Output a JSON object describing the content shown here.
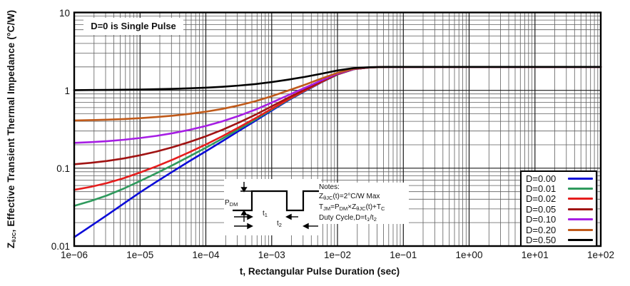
{
  "figure": {
    "annotation": "D=0 is Single Pulse",
    "xlabel": "t, Rectangular Pulse Duration (sec)",
    "ylabel_rich": "Z~θJC~, Effective Transient Thermal Impedance (°C/W)",
    "x_ticks": [
      "1e−06",
      "1e−05",
      "1e−04",
      "1e−03",
      "1e−02",
      "1e−01",
      "1e+00",
      "1e+01",
      "1e+02"
    ],
    "y_ticks": [
      "10",
      "1",
      "0.1",
      "0.01"
    ]
  },
  "notes": {
    "heading": "Notes:",
    "lines_rich": [
      "Z~θJC~(t)=2°C/W Max",
      "T~JM~=P~DM~×Z~θJC~(t)+T~C~",
      "Duty Cycle,D=t~1~/t~2~"
    ]
  },
  "pulse_diagram": {
    "pdm_rich": "P~DM~",
    "t1_rich": "t~1~",
    "t2_rich": "t~2~"
  },
  "chart_data": {
    "type": "line",
    "log_x": true,
    "log_y": true,
    "xlim": [
      1e-06,
      100
    ],
    "ylim": [
      0.01,
      10
    ],
    "grid": "log major+minor, both axes",
    "legend_position": "bottom-right inside plot",
    "title": "D=0 is Single Pulse",
    "xlabel": "t, Rectangular Pulse Duration (sec)",
    "ylabel": "ZθJC, Effective Transient Thermal Impedance (°C/W)",
    "r_thjc_max_C_per_W": 2.0,
    "model": "Z(D,t) = D·R + (1−D)·Zsp(t), R = 2 °C/W; all curves flatten at 2 °C/W for t ≳ 0.02 s",
    "single_pulse": {
      "log10_t": [
        -6,
        -5.75,
        -5.5,
        -5.25,
        -5,
        -4.75,
        -4.5,
        -4.25,
        -4,
        -3.75,
        -3.5,
        -3.25,
        -3,
        -2.75,
        -2.5,
        -2.25,
        -2,
        -1.75,
        -1.5,
        -1.25,
        -1,
        0,
        1,
        2
      ],
      "z": [
        0.013,
        0.018,
        0.025,
        0.035,
        0.049,
        0.067,
        0.091,
        0.123,
        0.165,
        0.222,
        0.3,
        0.405,
        0.55,
        0.74,
        0.97,
        1.26,
        1.6,
        1.87,
        1.97,
        2.0,
        2.0,
        2.0,
        2.0,
        2.0
      ]
    },
    "series": [
      {
        "label": "D=0.00",
        "duty": 0.0,
        "color": "#0b0bd8"
      },
      {
        "label": "D=0.01",
        "duty": 0.01,
        "color": "#2f9a5d"
      },
      {
        "label": "D=0.02",
        "duty": 0.02,
        "color": "#e51d1d"
      },
      {
        "label": "D=0.05",
        "duty": 0.05,
        "color": "#a01313"
      },
      {
        "label": "D=0.10",
        "duty": 0.1,
        "color": "#a61ee4"
      },
      {
        "label": "D=0.20",
        "duty": 0.2,
        "color": "#c05a1a"
      },
      {
        "label": "D=0.50",
        "duty": 0.5,
        "color": "#000000"
      }
    ]
  }
}
